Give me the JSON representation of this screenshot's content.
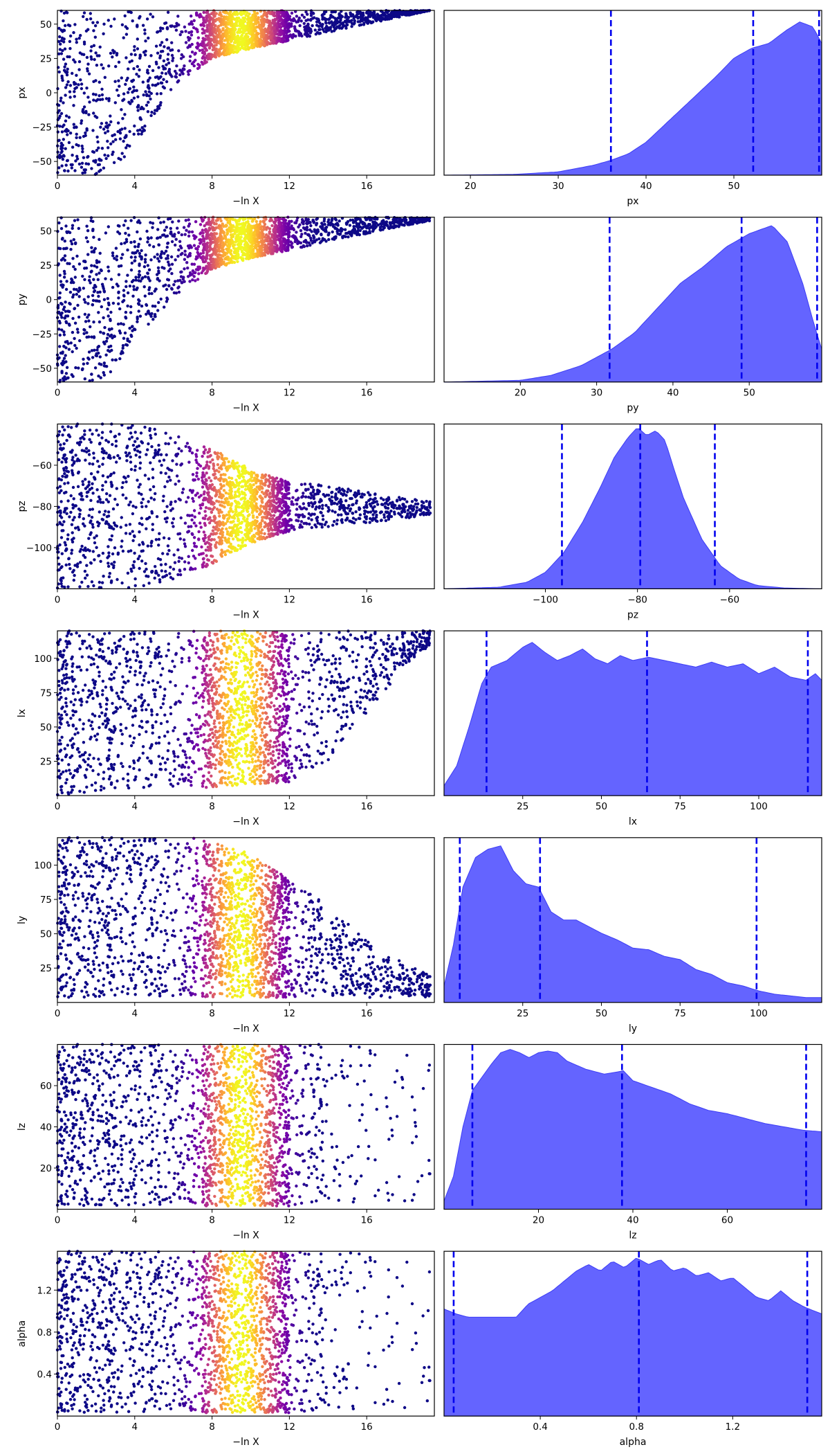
{
  "chart_data": [
    {
      "type": "scatter",
      "param": "px",
      "xlabel": "−ln X",
      "ylabel": "px",
      "xlim": [
        0,
        19.5
      ],
      "ylim": [
        -60,
        60
      ],
      "xticks": [
        0,
        4,
        8,
        12,
        16
      ],
      "xtick_labels": [
        "0",
        "4",
        "8",
        "12",
        "16"
      ],
      "yticks": [
        -50,
        -25,
        0,
        25,
        50
      ],
      "ytick_labels": [
        "−50",
        "−25",
        "0",
        "25",
        "50"
      ],
      "colormap": "plasma",
      "peak_color_at_x": 9.5,
      "boundary": {
        "x": [
          0,
          1,
          2,
          3,
          4,
          6,
          8,
          10,
          12,
          14,
          16,
          18,
          19.3
        ],
        "y": [
          -60,
          -60,
          -60,
          -57,
          -40,
          5,
          25,
          32,
          38,
          44,
          50,
          56,
          60
        ]
      }
    },
    {
      "type": "area",
      "param": "px",
      "xlabel": "px",
      "xlim": [
        17,
        60
      ],
      "xticks": [
        20,
        30,
        40,
        50
      ],
      "xtick_labels": [
        "20",
        "30",
        "40",
        "50"
      ],
      "quantiles": [
        36,
        52.2,
        59.7
      ],
      "density": {
        "x": [
          17,
          25,
          30,
          34,
          36,
          38,
          40,
          42,
          44,
          46,
          48,
          50,
          52,
          54,
          56,
          57.5,
          59,
          60
        ],
        "y": [
          0,
          0.005,
          0.02,
          0.06,
          0.09,
          0.13,
          0.2,
          0.3,
          0.4,
          0.5,
          0.6,
          0.71,
          0.77,
          0.8,
          0.88,
          0.93,
          0.9,
          0.8
        ]
      }
    },
    {
      "type": "scatter",
      "param": "py",
      "xlabel": "−ln X",
      "ylabel": "py",
      "xlim": [
        0,
        19.5
      ],
      "ylim": [
        -60,
        60
      ],
      "xticks": [
        0,
        4,
        8,
        12,
        16
      ],
      "xtick_labels": [
        "0",
        "4",
        "8",
        "12",
        "16"
      ],
      "yticks": [
        -50,
        -25,
        0,
        25,
        50
      ],
      "ytick_labels": [
        "−50",
        "−25",
        "0",
        "25",
        "50"
      ],
      "colormap": "plasma",
      "peak_color_at_x": 9.5,
      "boundary": {
        "x": [
          0,
          1,
          2,
          3,
          4,
          6,
          8,
          10,
          12,
          14,
          16,
          18,
          19.5
        ],
        "y": [
          -60,
          -60,
          -59,
          -52,
          -30,
          2,
          22,
          30,
          36,
          42,
          48,
          54,
          58
        ]
      }
    },
    {
      "type": "area",
      "param": "py",
      "xlabel": "py",
      "xlim": [
        10,
        59.5
      ],
      "xticks": [
        20,
        30,
        40,
        50
      ],
      "xtick_labels": [
        "20",
        "30",
        "40",
        "50"
      ],
      "quantiles": [
        31.7,
        49,
        58.9
      ],
      "density": {
        "x": [
          10,
          20,
          24,
          28,
          32,
          35,
          38,
          41,
          44,
          47,
          50,
          53,
          55,
          57,
          58.5,
          59.5
        ],
        "y": [
          0,
          0.01,
          0.04,
          0.1,
          0.2,
          0.3,
          0.45,
          0.6,
          0.7,
          0.82,
          0.9,
          0.95,
          0.85,
          0.6,
          0.35,
          0.2
        ]
      }
    },
    {
      "type": "scatter",
      "param": "pz",
      "xlabel": "−ln X",
      "ylabel": "pz",
      "xlim": [
        0,
        19.5
      ],
      "ylim": [
        -120,
        -40
      ],
      "xticks": [
        0,
        4,
        8,
        12,
        16
      ],
      "xtick_labels": [
        "0",
        "4",
        "8",
        "12",
        "16"
      ],
      "yticks": [
        -100,
        -80,
        -60
      ],
      "ytick_labels": [
        "−100",
        "−80",
        "−60"
      ],
      "colormap": "plasma",
      "peak_color_at_x": 9.5,
      "funnel": {
        "x": [
          0,
          4,
          6,
          8,
          10,
          12,
          14,
          16,
          18,
          19.5
        ],
        "upper": [
          -40,
          -40,
          -44,
          -52,
          -62,
          -68,
          -70,
          -73,
          -76,
          -78
        ],
        "lower": [
          -120,
          -120,
          -116,
          -108,
          -98,
          -92,
          -90,
          -88,
          -86,
          -84
        ]
      }
    },
    {
      "type": "area",
      "param": "pz",
      "xlabel": "pz",
      "xlim": [
        -122,
        -40
      ],
      "xticks": [
        -100,
        -80,
        -60
      ],
      "xtick_labels": [
        "−100",
        "−80",
        "−60"
      ],
      "quantiles": [
        -96.4,
        -79.4,
        -63.2
      ],
      "density": {
        "x": [
          -122,
          -110,
          -104,
          -100,
          -96,
          -92,
          -88,
          -85,
          -82,
          -80,
          -78,
          -76,
          -74,
          -72,
          -70,
          -66,
          -62,
          -58,
          -54,
          -48,
          -40
        ],
        "y": [
          0,
          0.01,
          0.04,
          0.1,
          0.22,
          0.4,
          0.62,
          0.8,
          0.92,
          0.98,
          0.93,
          0.96,
          0.9,
          0.72,
          0.55,
          0.3,
          0.14,
          0.06,
          0.02,
          0.005,
          0
        ]
      }
    },
    {
      "type": "scatter",
      "param": "lx",
      "xlabel": "−ln X",
      "ylabel": "lx",
      "xlim": [
        0,
        19.5
      ],
      "ylim": [
        0,
        120
      ],
      "xticks": [
        0,
        4,
        8,
        12,
        16
      ],
      "xtick_labels": [
        "0",
        "4",
        "8",
        "12",
        "16"
      ],
      "yticks": [
        25,
        50,
        75,
        100
      ],
      "ytick_labels": [
        "25",
        "50",
        "75",
        "100"
      ],
      "colormap": "plasma",
      "peak_color_at_x": 9.5,
      "lower_edge": {
        "x": [
          0,
          2,
          4,
          8,
          12,
          14,
          16,
          18,
          19.5
        ],
        "y": [
          0,
          3,
          5,
          6,
          10,
          25,
          60,
          95,
          112
        ]
      }
    },
    {
      "type": "area",
      "param": "lx",
      "xlabel": "lx",
      "xlim": [
        0,
        120
      ],
      "xticks": [
        25,
        50,
        75,
        100
      ],
      "xtick_labels": [
        "25",
        "50",
        "75",
        "100"
      ],
      "quantiles": [
        13.5,
        64.5,
        115.6
      ],
      "density": {
        "x": [
          0,
          4,
          8,
          12,
          15,
          20,
          25,
          28,
          32,
          36,
          40,
          44,
          48,
          52,
          56,
          60,
          65,
          70,
          75,
          80,
          85,
          90,
          95,
          100,
          105,
          110,
          115,
          118,
          120
        ],
        "y": [
          0.06,
          0.18,
          0.42,
          0.68,
          0.78,
          0.82,
          0.9,
          0.93,
          0.87,
          0.82,
          0.85,
          0.89,
          0.83,
          0.8,
          0.85,
          0.82,
          0.84,
          0.82,
          0.8,
          0.78,
          0.81,
          0.78,
          0.8,
          0.74,
          0.78,
          0.72,
          0.7,
          0.74,
          0.7
        ]
      }
    },
    {
      "type": "scatter",
      "param": "ly",
      "xlabel": "−ln X",
      "ylabel": "ly",
      "xlim": [
        0,
        19.5
      ],
      "ylim": [
        0,
        120
      ],
      "xticks": [
        0,
        4,
        8,
        12,
        16
      ],
      "xtick_labels": [
        "0",
        "4",
        "8",
        "12",
        "16"
      ],
      "yticks": [
        25,
        50,
        75,
        100
      ],
      "ytick_labels": [
        "25",
        "50",
        "75",
        "100"
      ],
      "colormap": "plasma",
      "peak_color_at_x": 9.5,
      "upper_edge": {
        "x": [
          0,
          4,
          7,
          8,
          10,
          12,
          14,
          16,
          18,
          19.5
        ],
        "y": [
          120,
          120,
          120,
          118,
          108,
          90,
          70,
          45,
          28,
          18
        ]
      }
    },
    {
      "type": "area",
      "param": "ly",
      "xlabel": "ly",
      "xlim": [
        0,
        120
      ],
      "xticks": [
        25,
        50,
        75,
        100
      ],
      "xtick_labels": [
        "25",
        "50",
        "75",
        "100"
      ],
      "quantiles": [
        5,
        30.5,
        99.3
      ],
      "density": {
        "x": [
          0,
          3,
          6,
          10,
          14,
          18,
          22,
          26,
          30,
          34,
          38,
          42,
          46,
          50,
          55,
          60,
          65,
          70,
          75,
          80,
          85,
          90,
          95,
          100,
          105,
          110,
          115,
          120
        ],
        "y": [
          0.1,
          0.35,
          0.7,
          0.88,
          0.93,
          0.95,
          0.8,
          0.72,
          0.7,
          0.55,
          0.5,
          0.5,
          0.46,
          0.42,
          0.38,
          0.33,
          0.32,
          0.28,
          0.26,
          0.2,
          0.17,
          0.12,
          0.1,
          0.07,
          0.05,
          0.04,
          0.03,
          0.03
        ]
      }
    },
    {
      "type": "scatter",
      "param": "lz",
      "xlabel": "−ln X",
      "ylabel": "lz",
      "xlim": [
        0,
        19.5
      ],
      "ylim": [
        0,
        80
      ],
      "xticks": [
        0,
        4,
        8,
        12,
        16
      ],
      "xtick_labels": [
        "0",
        "4",
        "8",
        "12",
        "16"
      ],
      "yticks": [
        20,
        40,
        60
      ],
      "ytick_labels": [
        "20",
        "40",
        "60"
      ],
      "colormap": "plasma",
      "peak_color_at_x": 9.5
    },
    {
      "type": "area",
      "param": "lz",
      "xlabel": "lz",
      "xlim": [
        0,
        80
      ],
      "xticks": [
        20,
        40,
        60
      ],
      "xtick_labels": [
        "20",
        "40",
        "60"
      ],
      "quantiles": [
        6,
        37.7,
        76.7
      ],
      "density": {
        "x": [
          0,
          2,
          4,
          6,
          8,
          10,
          12,
          14,
          16,
          18,
          20,
          22,
          24,
          26,
          30,
          34,
          38,
          40,
          44,
          48,
          52,
          56,
          60,
          64,
          68,
          72,
          76,
          80
        ],
        "y": [
          0.05,
          0.2,
          0.5,
          0.72,
          0.8,
          0.88,
          0.95,
          0.97,
          0.95,
          0.92,
          0.95,
          0.96,
          0.95,
          0.9,
          0.85,
          0.82,
          0.84,
          0.78,
          0.74,
          0.7,
          0.64,
          0.6,
          0.58,
          0.55,
          0.52,
          0.5,
          0.48,
          0.47
        ]
      }
    },
    {
      "type": "scatter",
      "param": "alpha",
      "xlabel": "−ln X",
      "ylabel": "alpha",
      "xlim": [
        0,
        19.5
      ],
      "ylim": [
        0,
        1.57
      ],
      "xticks": [
        0,
        4,
        8,
        12,
        16
      ],
      "xtick_labels": [
        "0",
        "4",
        "8",
        "12",
        "16"
      ],
      "yticks": [
        0.4,
        0.8,
        1.2
      ],
      "ytick_labels": [
        "0.4",
        "0.8",
        "1.2"
      ],
      "colormap": "plasma",
      "peak_color_at_x": 9.5
    },
    {
      "type": "area",
      "param": "alpha",
      "xlabel": "alpha",
      "xlim": [
        0,
        1.57
      ],
      "xticks": [
        0.4,
        0.8,
        1.2
      ],
      "xtick_labels": [
        "0.4",
        "0.8",
        "1.2"
      ],
      "quantiles": [
        0.04,
        0.81,
        1.51
      ],
      "density": {
        "x": [
          0,
          0.05,
          0.1,
          0.2,
          0.3,
          0.35,
          0.4,
          0.45,
          0.5,
          0.55,
          0.6,
          0.65,
          0.7,
          0.75,
          0.8,
          0.85,
          0.9,
          0.95,
          1.0,
          1.05,
          1.1,
          1.15,
          1.2,
          1.25,
          1.3,
          1.35,
          1.4,
          1.45,
          1.5,
          1.57
        ],
        "y": [
          0.65,
          0.62,
          0.6,
          0.6,
          0.6,
          0.68,
          0.72,
          0.76,
          0.82,
          0.88,
          0.92,
          0.88,
          0.94,
          0.9,
          0.96,
          0.92,
          0.95,
          0.88,
          0.9,
          0.85,
          0.87,
          0.82,
          0.84,
          0.78,
          0.72,
          0.7,
          0.76,
          0.7,
          0.66,
          0.62
        ]
      }
    }
  ],
  "colors": {
    "kde_fill": "#6464ff",
    "quantile_line": "#0000ee",
    "plasma": [
      "#0d0887",
      "#3e049c",
      "#6a00a8",
      "#900da4",
      "#b12a90",
      "#cc4778",
      "#e16462",
      "#f1844b",
      "#fca636",
      "#fcce25",
      "#f0f921"
    ]
  }
}
